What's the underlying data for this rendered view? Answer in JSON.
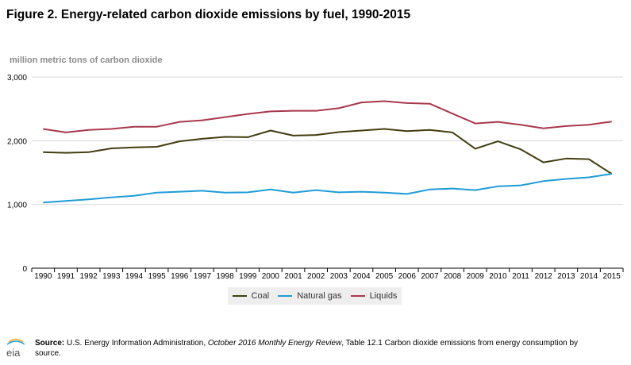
{
  "title": "Figure 2. Energy-related carbon dioxide emissions by fuel, 1990-2015",
  "footer": {
    "source_label": "Source:",
    "source_text_1": " U.S. Energy Information Administration, ",
    "source_italic": "October 2016 Monthly Energy Review",
    "source_text_2": ", Table 12.1 Carbon dioxide emissions from energy consumption by source."
  },
  "logo_text": "eia",
  "chart_data": {
    "type": "line",
    "title": "Figure 2. Energy-related carbon dioxide emissions by fuel, 1990-2015",
    "xlabel": "",
    "ylabel": "million metric tons of carbon dioxide",
    "ylim": [
      0,
      3000
    ],
    "yticks": [
      0,
      1000,
      2000,
      3000
    ],
    "ytick_labels": [
      "0",
      "1,000",
      "2,000",
      "3,000"
    ],
    "x": [
      "1990",
      "1991",
      "1992",
      "1993",
      "1994",
      "1995",
      "1996",
      "1997",
      "1998",
      "1999",
      "2000",
      "2001",
      "2002",
      "2003",
      "2004",
      "2005",
      "2006",
      "2007",
      "2008",
      "2009",
      "2010",
      "2011",
      "2012",
      "2013",
      "2014",
      "2015"
    ],
    "grid": true,
    "legend_position": "bottom",
    "series": [
      {
        "name": "Coal",
        "color": "#433c10",
        "values": [
          1820,
          1810,
          1820,
          1880,
          1895,
          1905,
          1990,
          2030,
          2060,
          2055,
          2160,
          2080,
          2090,
          2135,
          2160,
          2185,
          2150,
          2170,
          2130,
          1875,
          1990,
          1865,
          1660,
          1720,
          1710,
          1480
        ]
      },
      {
        "name": "Natural gas",
        "color": "#1e9cd7",
        "values": [
          1030,
          1055,
          1080,
          1110,
          1135,
          1185,
          1200,
          1215,
          1185,
          1190,
          1235,
          1185,
          1225,
          1190,
          1200,
          1185,
          1165,
          1235,
          1250,
          1225,
          1285,
          1300,
          1365,
          1400,
          1425,
          1480
        ]
      },
      {
        "name": "Liquids",
        "color": "#a8384c",
        "values": [
          2185,
          2130,
          2170,
          2185,
          2220,
          2220,
          2295,
          2320,
          2370,
          2420,
          2460,
          2470,
          2470,
          2510,
          2600,
          2620,
          2590,
          2580,
          2425,
          2270,
          2295,
          2250,
          2195,
          2230,
          2250,
          2300
        ]
      }
    ]
  }
}
